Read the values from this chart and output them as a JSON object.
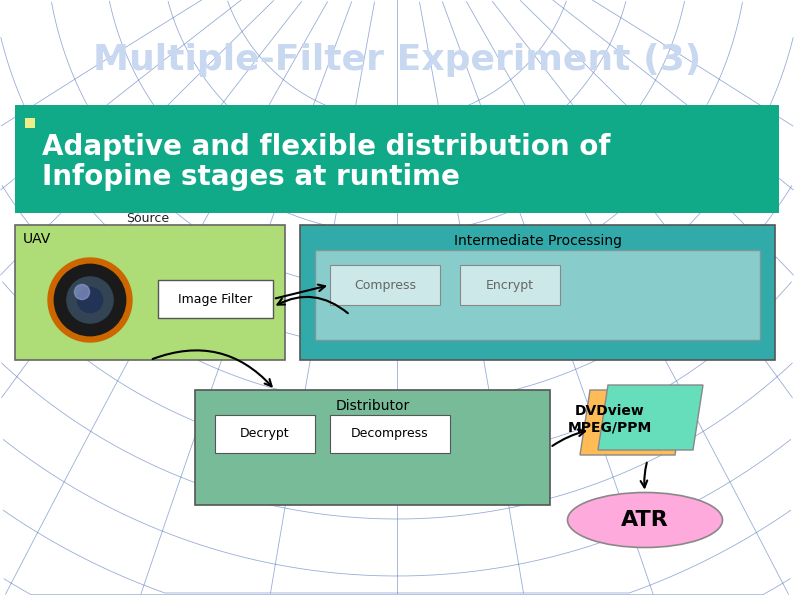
{
  "title": "Multiple-Filter Experiment (3)",
  "title_color": "#c8d8f0",
  "bg_color": "#ffffff",
  "globe_line_color": "#5577bb",
  "bullet_text_line1": "Adaptive and flexible distribution of",
  "bullet_text_line2": "Infopine stages at runtime",
  "bullet_box_color": "#11aa88",
  "bullet_text_color": "#ffffff",
  "bullet_marker_color": "#eeee88",
  "source_label": "Source",
  "uav_box_color": "#aedd77",
  "uav_label": "UAV",
  "image_filter_label": "Image Filter",
  "image_filter_box": "#ffffff",
  "intermediate_box_color": "#33aaaa",
  "intermediate_label": "Intermediate Processing",
  "compress_label": "Compress",
  "encrypt_label": "Encrypt",
  "compress_encrypt_bg": "#88cccc",
  "distributor_box_color": "#77bb99",
  "distributor_label": "Distributor",
  "decrypt_label": "Decrypt",
  "decompress_label": "Decompress",
  "inner_box_color": "#ffffff",
  "dvdview_label": "DVDview\nMPEG/PPM",
  "dvdview_box1_color": "#ffbb55",
  "dvdview_box2_color": "#66ddbb",
  "atr_label": "ATR",
  "atr_color": "#ffaadd"
}
